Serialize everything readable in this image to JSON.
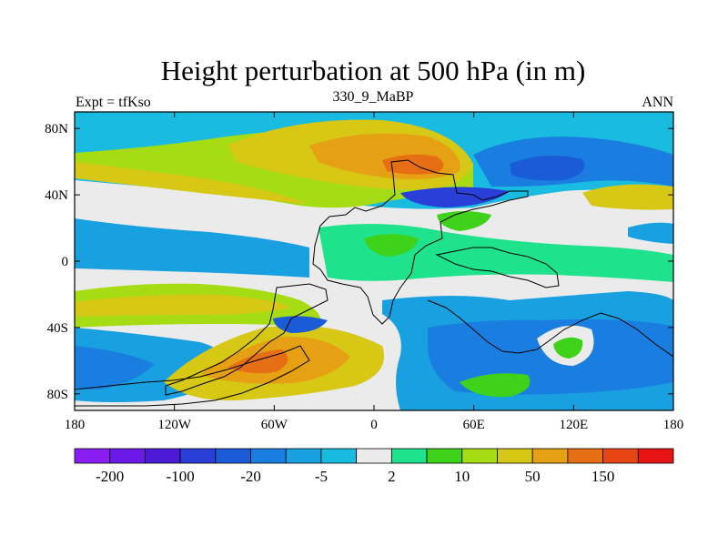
{
  "chart_data": {
    "type": "heatmap",
    "title": "Height perturbation at 500 hPa (in m)",
    "left_string": "Expt = tfKso",
    "center_string": "330_9_MaBP",
    "right_string": "ANN",
    "xlabel": "",
    "ylabel": "",
    "x_range": [
      -180,
      180
    ],
    "y_range": [
      -90,
      90
    ],
    "x_ticks": [
      "180",
      "120W",
      "60W",
      "0",
      "60E",
      "120E",
      "180"
    ],
    "x_tick_values": [
      -180,
      -120,
      -60,
      0,
      60,
      120,
      180
    ],
    "y_ticks": [
      "80N",
      "40N",
      "0",
      "40S",
      "80S"
    ],
    "y_tick_values": [
      80,
      40,
      0,
      -40,
      -80
    ],
    "colorbar": {
      "colors": [
        "#8a1ef0",
        "#6a19e6",
        "#4a1ad6",
        "#2a3ed8",
        "#1a5cd8",
        "#1a7ee0",
        "#18a0e0",
        "#1abbe0",
        "#ebebeb",
        "#1ee38c",
        "#3ed21a",
        "#a6dc14",
        "#d6c814",
        "#e6a014",
        "#e66e14",
        "#e64614",
        "#e61414"
      ],
      "labels": [
        "-200",
        "-100",
        "-20",
        "-5",
        "2",
        "10",
        "50",
        "150"
      ],
      "label_boundary_index": [
        1,
        3,
        5,
        7,
        9,
        11,
        13,
        15
      ]
    },
    "fields": [
      {
        "color": "#18a0e0",
        "description": "broad negative (-20 to -5 m) band in northern high latitudes and tropics"
      },
      {
        "color": "#d6c814",
        "description": "positive 50 m band along 40N Pacific/Atlantic"
      },
      {
        "color": "#e6a014",
        "description": "positive maximum over North Atlantic/Europe near 60N"
      },
      {
        "color": "#1a5cd8",
        "description": "negative trough over Siberia near 60N 150E"
      },
      {
        "color": "#e66e14",
        "description": "positive ridge over South America sector near 60S 80W"
      },
      {
        "color": "#1a5cd8",
        "description": "negative regions in southern high latitudes (Indian/Pacific sector)"
      }
    ]
  }
}
